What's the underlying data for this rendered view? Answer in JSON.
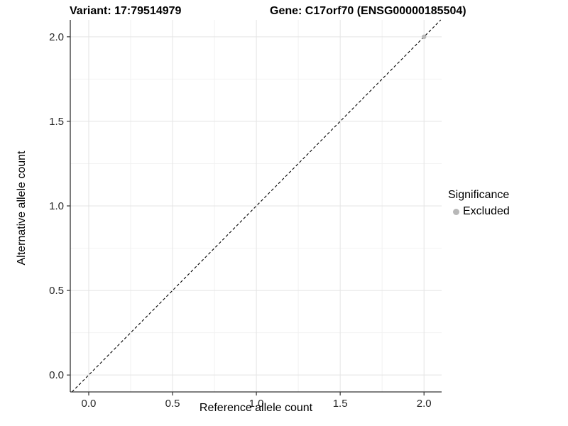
{
  "chart_data": {
    "type": "scatter",
    "title_left": "Variant: 17:79514979",
    "title_right": "Gene: C17orf70 (ENSG00000185504)",
    "xlabel": "Reference allele count",
    "ylabel": "Alternative allele count",
    "xlim": [
      -0.11,
      2.105
    ],
    "ylim": [
      -0.1,
      2.1
    ],
    "xticks": [
      0.0,
      0.5,
      1.0,
      1.5,
      2.0
    ],
    "yticks": [
      0.0,
      0.5,
      1.0,
      1.5,
      2.0
    ],
    "xtick_labels": [
      "0.0",
      "0.5",
      "1.0",
      "1.5",
      "2.0"
    ],
    "ytick_labels": [
      "0.0",
      "0.5",
      "1.0",
      "1.5",
      "2.0"
    ],
    "grid": true,
    "minor_grid": true,
    "series": [
      {
        "name": "Excluded",
        "color": "#b8b8b8",
        "points": [
          {
            "x": 2.0,
            "y": 2.0
          }
        ]
      }
    ],
    "reference_line": {
      "type": "identity",
      "slope": 1,
      "intercept": 0,
      "style": "dashed",
      "color": "#000000"
    },
    "legend": {
      "title": "Significance",
      "position": "right",
      "entries": [
        {
          "label": "Excluded",
          "color": "#b8b8b8"
        }
      ]
    }
  },
  "colors": {
    "background": "#ffffff",
    "axis_line": "#333333",
    "tick_label": "#262626",
    "grid_major": "#e4e4e4",
    "grid_minor": "#f2f2f2",
    "point": "#b8b8b8",
    "reference_line": "#000000"
  }
}
